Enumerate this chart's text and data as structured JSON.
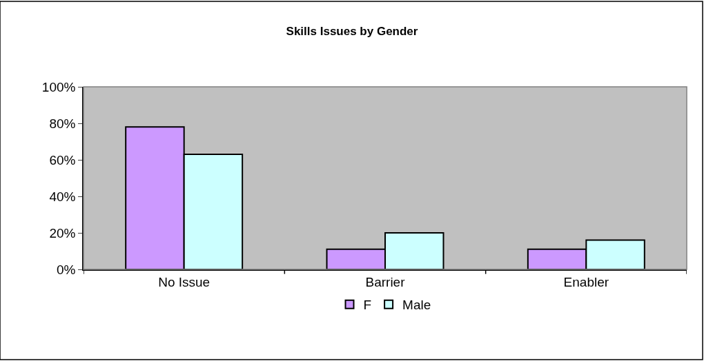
{
  "chart_data": {
    "type": "bar",
    "title": "Skills Issues by Gender",
    "categories": [
      "No Issue",
      "Barrier",
      "Enabler"
    ],
    "series": [
      {
        "name": "F",
        "color": "#cc99ff",
        "values": [
          78,
          11,
          11
        ]
      },
      {
        "name": "Male",
        "color": "#ccffff",
        "values": [
          63,
          20,
          16
        ]
      }
    ],
    "ylim": [
      0,
      100
    ],
    "yticks": [
      {
        "value": 0,
        "label": "0%"
      },
      {
        "value": 20,
        "label": "20%"
      },
      {
        "value": 40,
        "label": "40%"
      },
      {
        "value": 60,
        "label": "60%"
      },
      {
        "value": 80,
        "label": "80%"
      },
      {
        "value": 100,
        "label": "100%"
      }
    ],
    "grid": false,
    "legend": "bottom"
  }
}
